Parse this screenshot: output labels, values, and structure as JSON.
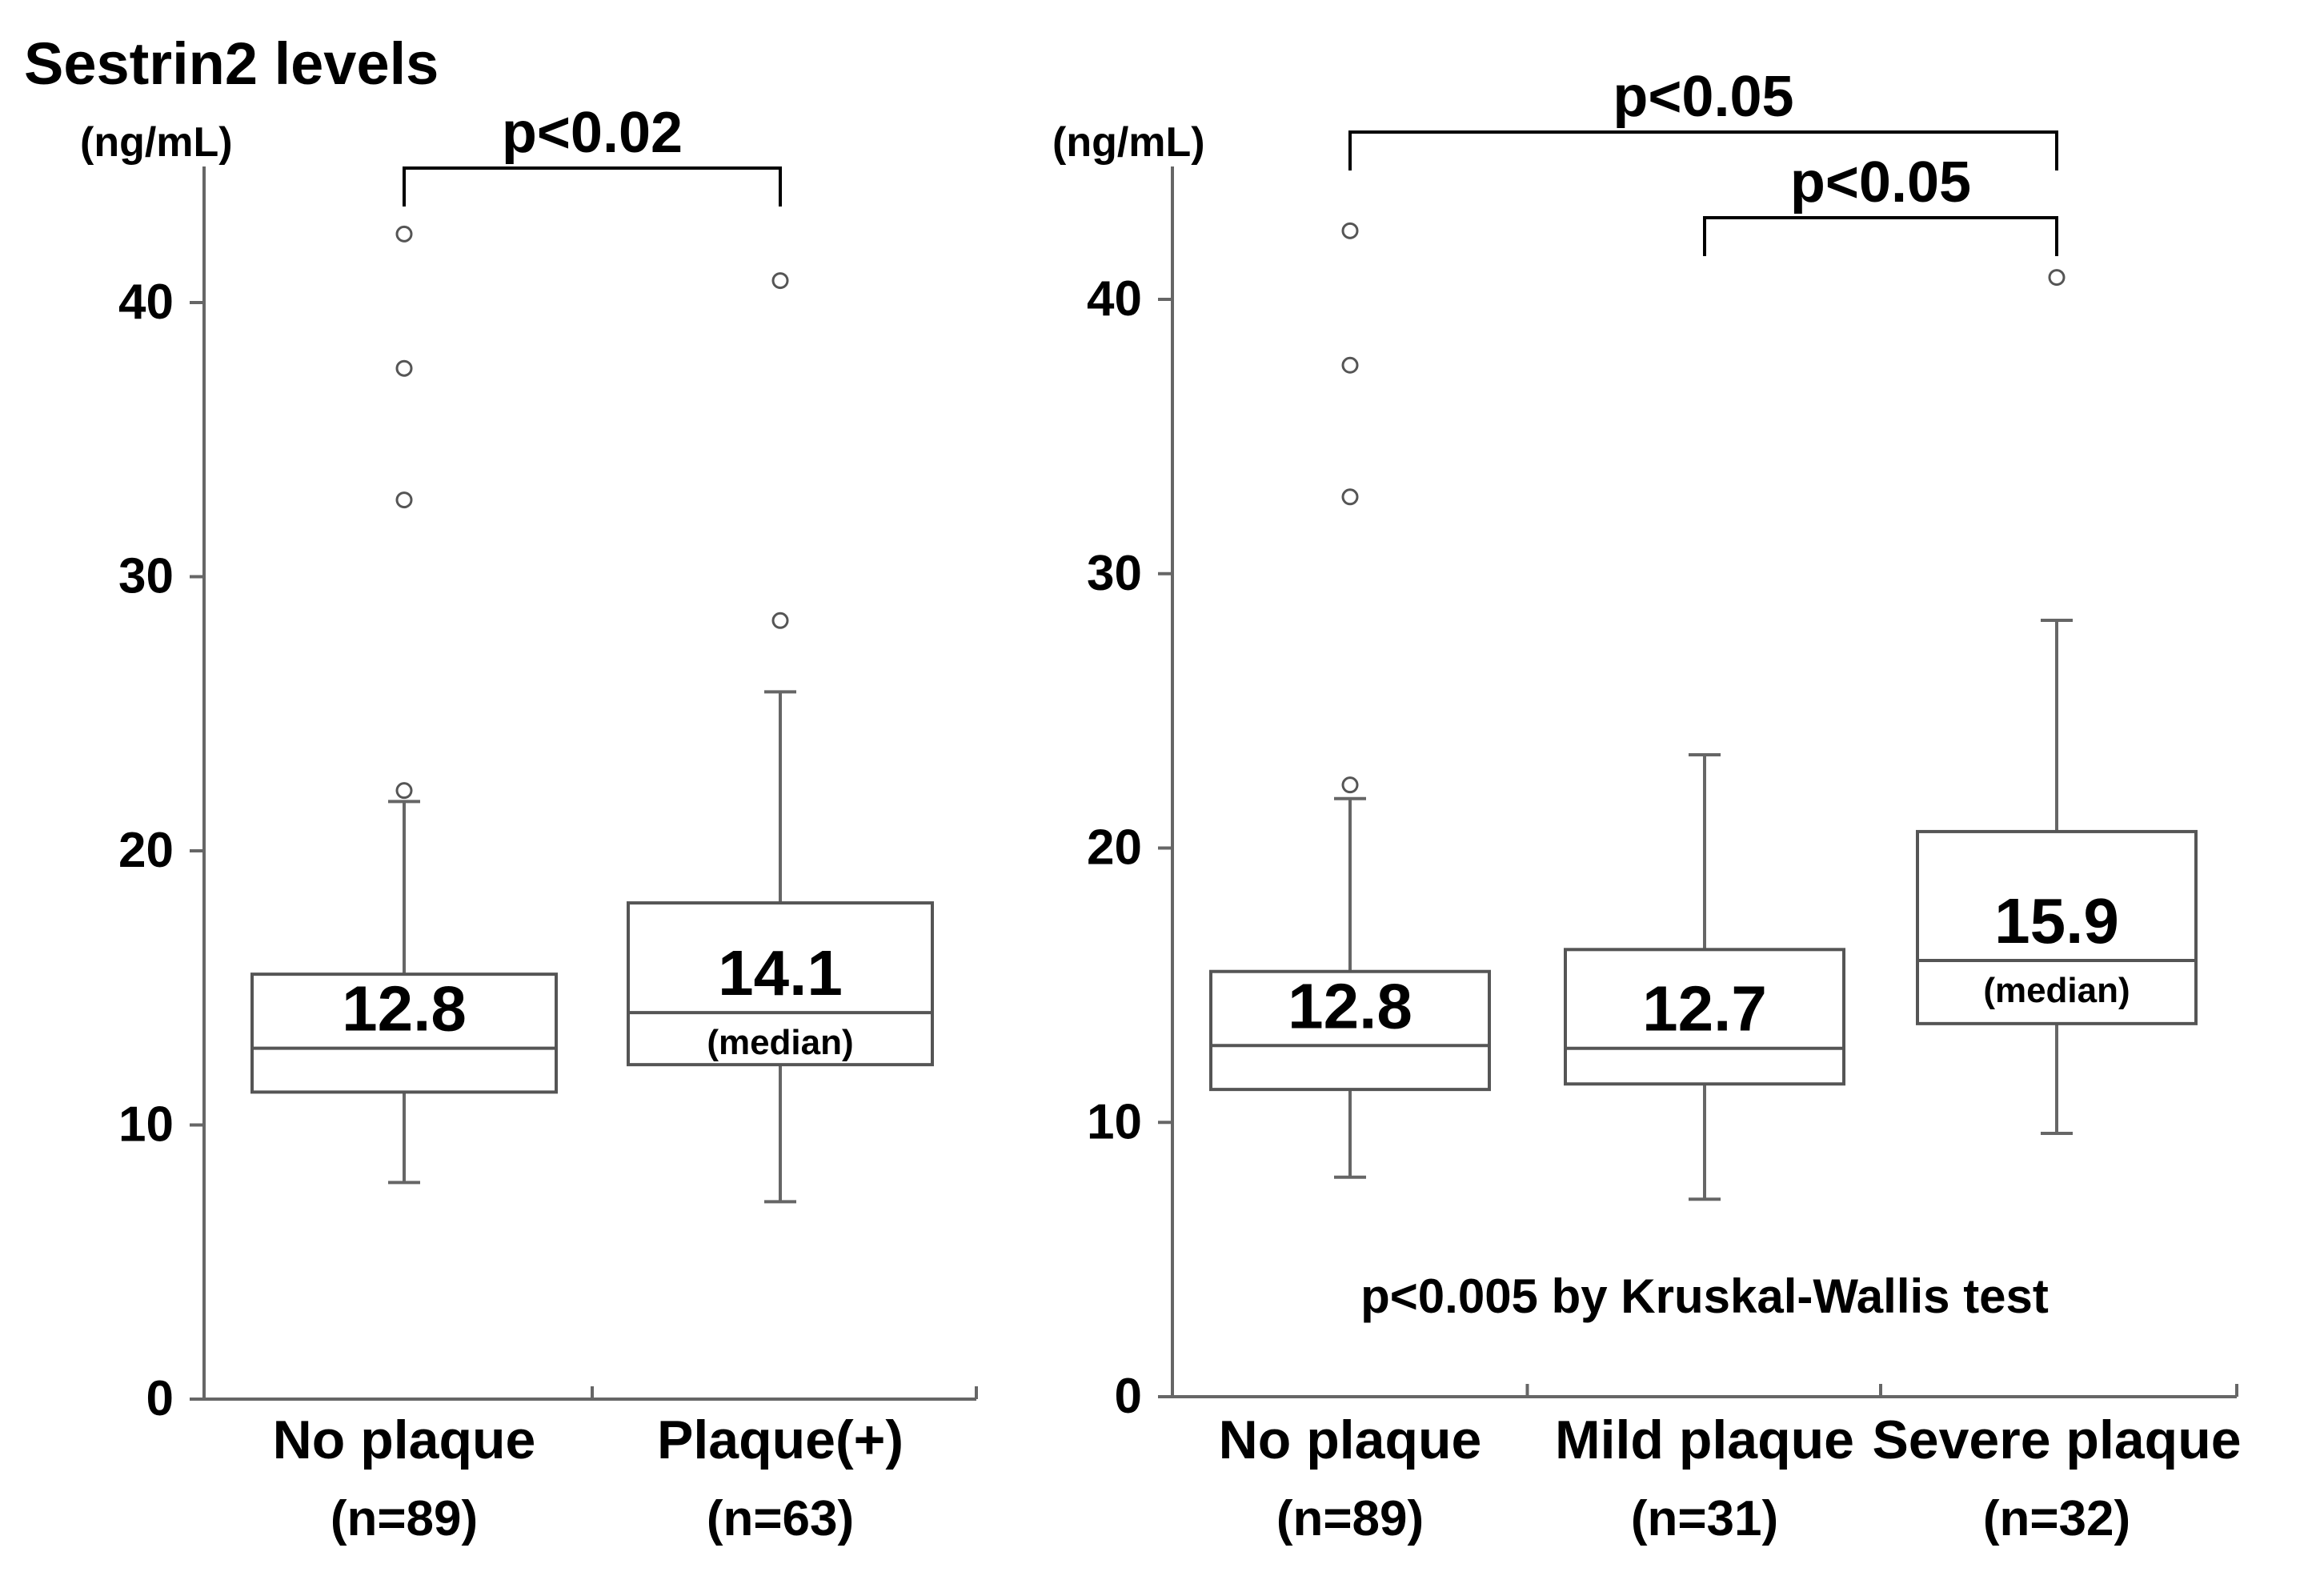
{
  "title": "Sestrin2 levels",
  "chart_data": [
    {
      "type": "boxplot",
      "ylabel": "(ng/mL)",
      "ylim": [
        0,
        40
      ],
      "yticks": [
        0,
        10,
        20,
        30,
        40
      ],
      "categories": [
        {
          "name": "No plaque",
          "n": "(n=89)"
        },
        {
          "name": "Plaque(+)",
          "n": "(n=63)"
        }
      ],
      "boxes": [
        {
          "q1": 11.2,
          "median": 12.8,
          "q3": 15.5,
          "whisker_low": 7.9,
          "whisker_high": 21.8,
          "outliers": [
            22.2,
            32.8,
            37.6,
            42.5
          ],
          "median_label": "12.8",
          "median_note": ""
        },
        {
          "q1": 12.2,
          "median": 14.1,
          "q3": 18.1,
          "whisker_low": 7.2,
          "whisker_high": 25.8,
          "outliers": [
            28.4,
            40.8
          ],
          "median_label": "14.1",
          "median_note": "(median)"
        }
      ],
      "comparisons": [
        {
          "from": 0,
          "to": 1,
          "label": "p<0.02"
        }
      ],
      "annotation": ""
    },
    {
      "type": "boxplot",
      "ylabel": "(ng/mL)",
      "ylim": [
        0,
        40
      ],
      "yticks": [
        0,
        10,
        20,
        30,
        40
      ],
      "categories": [
        {
          "name": "No plaque",
          "n": "(n=89)"
        },
        {
          "name": "Mild plaque",
          "n": "(n=31)"
        },
        {
          "name": "Severe plaque",
          "n": "(n=32)"
        }
      ],
      "boxes": [
        {
          "q1": 11.2,
          "median": 12.8,
          "q3": 15.5,
          "whisker_low": 8.0,
          "whisker_high": 21.8,
          "outliers": [
            22.3,
            32.8,
            37.6,
            42.5
          ],
          "median_label": "12.8",
          "median_note": ""
        },
        {
          "q1": 11.4,
          "median": 12.7,
          "q3": 16.3,
          "whisker_low": 7.2,
          "whisker_high": 23.4,
          "outliers": [],
          "median_label": "12.7",
          "median_note": ""
        },
        {
          "q1": 13.6,
          "median": 15.9,
          "q3": 20.6,
          "whisker_low": 9.6,
          "whisker_high": 28.3,
          "outliers": [
            40.8
          ],
          "median_label": "15.9",
          "median_note": "(median)"
        }
      ],
      "comparisons": [
        {
          "from": 0,
          "to": 2,
          "label": "p<0.05"
        },
        {
          "from": 1,
          "to": 2,
          "label": "p<0.05"
        }
      ],
      "annotation": "p<0.005 by Kruskal-Wallis test"
    }
  ]
}
